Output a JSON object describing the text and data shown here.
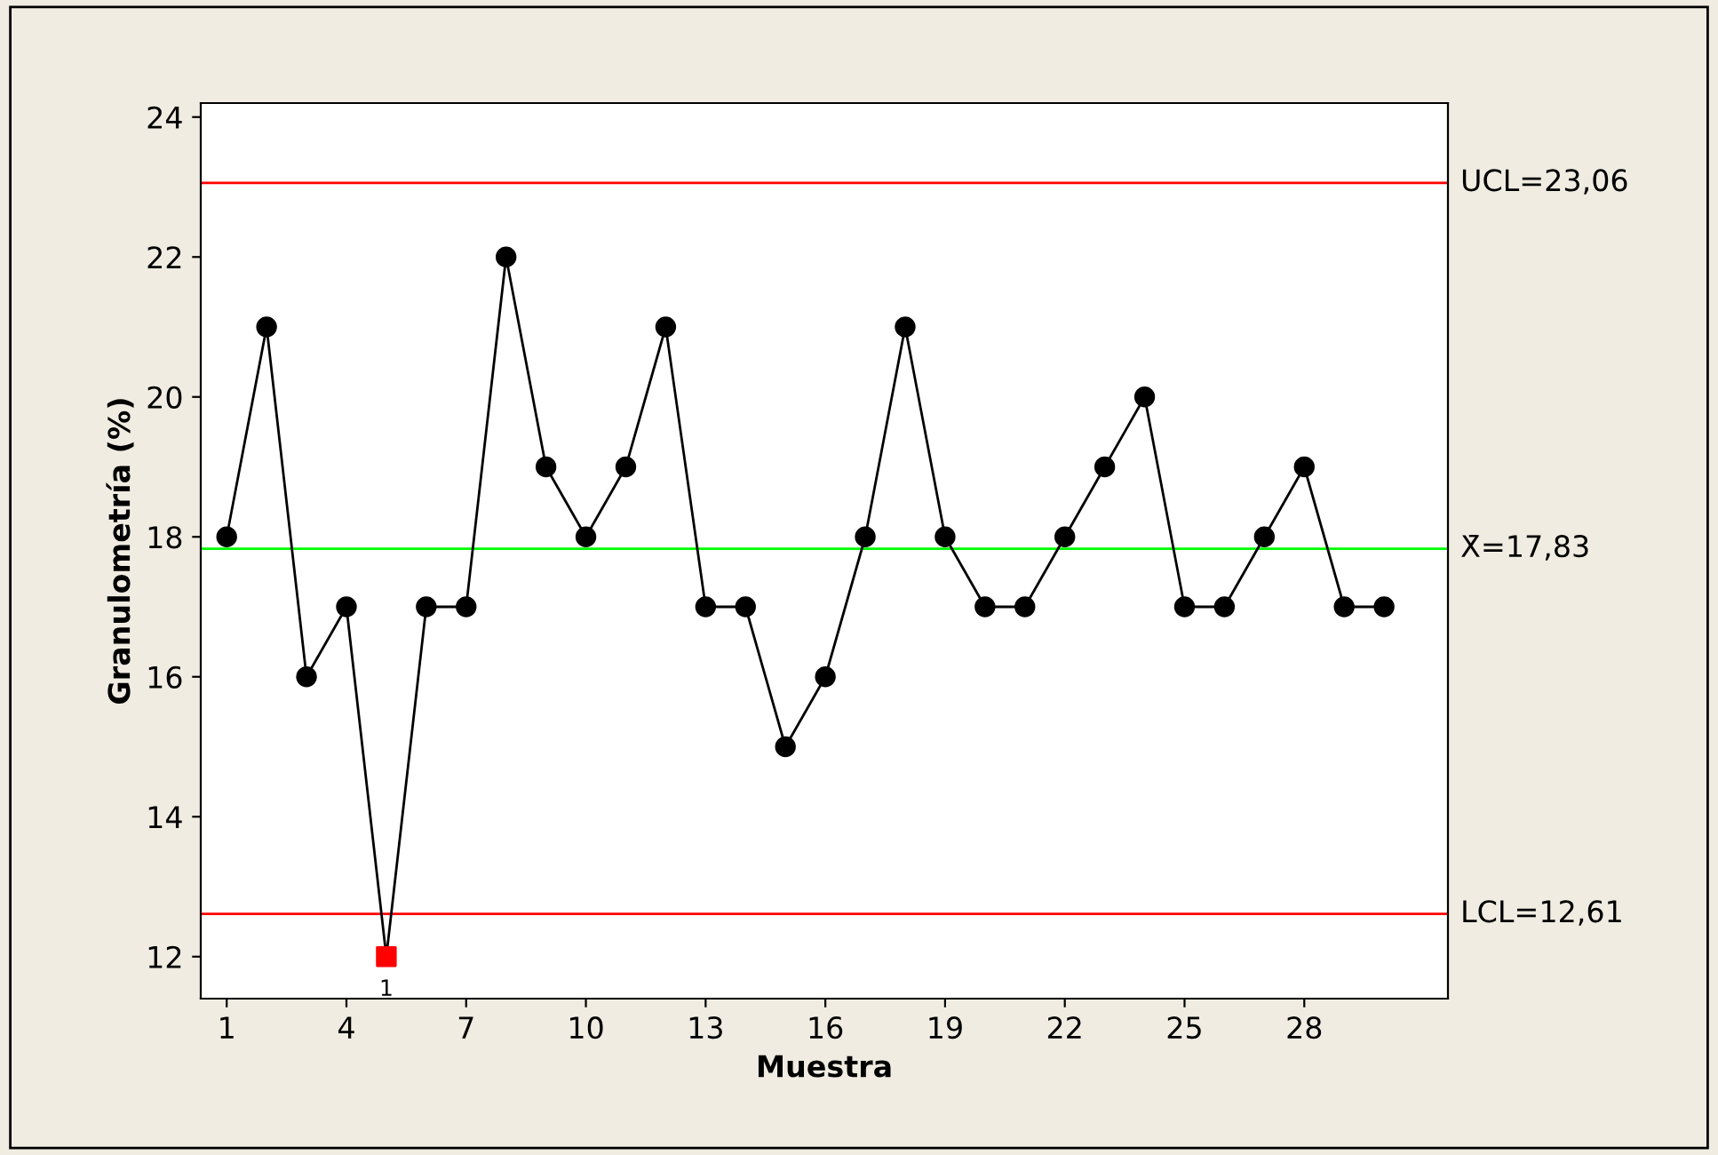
{
  "chart_data": {
    "type": "line",
    "xlabel": "Muestra",
    "ylabel": "Granulometría (%)",
    "xlim": [
      0.35,
      31.6
    ],
    "ylim": [
      11.4,
      24.2
    ],
    "xticks": [
      1,
      4,
      7,
      10,
      13,
      16,
      19,
      22,
      25,
      28
    ],
    "yticks": [
      12,
      14,
      16,
      18,
      20,
      22,
      24
    ],
    "grid": false,
    "legend": false,
    "series": [
      {
        "color": "#000000",
        "marker": "none",
        "line_style": "solid",
        "x": [
          1,
          2,
          3,
          4,
          5,
          6,
          7,
          8,
          9,
          10,
          11,
          12,
          13,
          14,
          15,
          16,
          17,
          18,
          19,
          20,
          21,
          22,
          23,
          24,
          25,
          26,
          27,
          28,
          29,
          30
        ],
        "values": [
          18,
          21,
          16,
          17,
          12,
          17,
          17,
          22,
          19,
          18,
          19,
          21,
          17,
          17,
          15,
          16,
          18,
          21,
          18,
          17,
          17,
          18,
          19,
          20,
          17,
          17,
          18,
          19,
          17,
          17
        ]
      },
      {
        "type": "scatter",
        "color": "#000000",
        "marker": "circle",
        "x": [
          1,
          2,
          3,
          4,
          6,
          7,
          8,
          9,
          10,
          11,
          12,
          13,
          14,
          15,
          16,
          17,
          18,
          19,
          20,
          21,
          22,
          23,
          24,
          25,
          26,
          27,
          28,
          29,
          30
        ],
        "values": [
          18,
          21,
          16,
          17,
          17,
          17,
          22,
          19,
          18,
          19,
          21,
          17,
          17,
          15,
          16,
          18,
          21,
          18,
          17,
          17,
          18,
          19,
          20,
          17,
          17,
          18,
          19,
          17,
          17
        ]
      },
      {
        "type": "scatter",
        "color": "#ff0000",
        "marker": "square",
        "x": [
          5
        ],
        "values": [
          12
        ]
      }
    ],
    "ref_lines": [
      {
        "axis": "y",
        "value": 23.06,
        "label": "UCL=23,06",
        "color": "#ff0000"
      },
      {
        "axis": "y",
        "value": 17.83,
        "label": "X̄=17,83",
        "color": "#00ff00"
      },
      {
        "axis": "y",
        "value": 12.61,
        "label": "LCL=12,61",
        "color": "#ff0000"
      }
    ],
    "annotations": [
      {
        "text": "1",
        "x": 5,
        "y": 12
      }
    ]
  }
}
